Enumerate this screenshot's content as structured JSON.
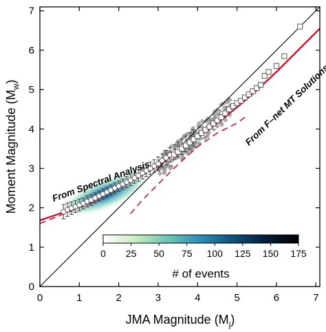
{
  "chart_data": {
    "type": "scatter",
    "xlabel": "JMA Magnitude (M",
    "xlabel_sub": "j",
    "xlabel_end": ")",
    "ylabel": "Moment Magnitude (M",
    "ylabel_sub": "w",
    "ylabel_end": ")",
    "xlim": [
      0,
      7.1
    ],
    "ylim": [
      0,
      7.1
    ],
    "xticks": [
      0,
      1,
      2,
      3,
      4,
      5,
      6,
      7
    ],
    "yticks": [
      0,
      1,
      2,
      3,
      4,
      5,
      6,
      7
    ],
    "grid": false,
    "colorbar": {
      "title": "# of events",
      "ticks": [
        0,
        25,
        50,
        75,
        100,
        125,
        150,
        175
      ],
      "range": [
        0,
        175
      ],
      "colors": [
        "#ffffff",
        "#c8ecc0",
        "#6cc4b4",
        "#2a8db8",
        "#0d4f7c",
        "#051e3c",
        "#000000"
      ]
    },
    "annotations": [
      {
        "text": "From Spectral Analysis"
      },
      {
        "text": "From F–net MT Solutions"
      }
    ],
    "series": [
      {
        "kind": "reference",
        "x": [
          0,
          7.1
        ],
        "y": [
          0,
          7.1
        ]
      },
      {
        "kind": "fit",
        "x": [
          0,
          0.5,
          1.0,
          1.5,
          2.0,
          2.5,
          3.0,
          3.5,
          4.0,
          4.5,
          5.0,
          5.5,
          6.0,
          6.5,
          7.1
        ],
        "y": [
          1.68,
          1.85,
          2.05,
          2.25,
          2.5,
          2.77,
          3.07,
          3.42,
          3.78,
          4.15,
          4.55,
          4.98,
          5.45,
          5.95,
          6.55
        ]
      },
      {
        "kind": "dashed",
        "x": [
          0,
          0.6,
          1.0,
          1.5
        ],
        "y": [
          1.6,
          1.84,
          2.0,
          2.2
        ]
      },
      {
        "kind": "dashed",
        "x": [
          2.3,
          2.6,
          3.0,
          3.5,
          4.0,
          4.5,
          5.0,
          5.2
        ],
        "y": [
          1.85,
          2.2,
          2.6,
          3.1,
          3.55,
          3.9,
          4.15,
          4.3
        ]
      },
      {
        "kind": "binned-spectral",
        "x": [
          0.6,
          0.7,
          0.8,
          0.9,
          1.0,
          1.1,
          1.2,
          1.3,
          1.4,
          1.5,
          1.6,
          1.7,
          1.8,
          1.9,
          2.0,
          2.1,
          2.2,
          2.3,
          2.4,
          2.5,
          2.6,
          2.7,
          2.8,
          2.9,
          3.0,
          3.1,
          3.2,
          3.3,
          3.4,
          3.5,
          3.6,
          3.7,
          3.8,
          3.9
        ],
        "y": [
          1.9,
          1.95,
          1.99,
          2.03,
          2.07,
          2.11,
          2.16,
          2.2,
          2.25,
          2.3,
          2.35,
          2.4,
          2.45,
          2.5,
          2.55,
          2.6,
          2.65,
          2.7,
          2.76,
          2.82,
          2.88,
          2.94,
          3.0,
          3.06,
          3.12,
          3.2,
          3.27,
          3.34,
          3.41,
          3.48,
          3.55,
          3.62,
          3.7,
          3.77
        ],
        "err": [
          0.18,
          0.17,
          0.16,
          0.15,
          0.15,
          0.14,
          0.14,
          0.14,
          0.13,
          0.13,
          0.13,
          0.13,
          0.13,
          0.13,
          0.13,
          0.13,
          0.14,
          0.14,
          0.14,
          0.15,
          0.15,
          0.15,
          0.16,
          0.16,
          0.17,
          0.17,
          0.18,
          0.18,
          0.19,
          0.19,
          0.2,
          0.2,
          0.21,
          0.21
        ]
      },
      {
        "kind": "binned-mt",
        "x": [
          3.4,
          3.5,
          3.6,
          3.7,
          3.8,
          3.9,
          4.0,
          4.1,
          4.2,
          4.3,
          4.4,
          4.5,
          4.6,
          4.7,
          4.8,
          4.9,
          5.0,
          5.1,
          5.2,
          5.3,
          5.4,
          5.5,
          5.6,
          5.7,
          5.8,
          6.0,
          6.2,
          6.6
        ],
        "y": [
          3.35,
          3.42,
          3.5,
          3.58,
          3.66,
          3.74,
          3.82,
          3.9,
          3.98,
          4.06,
          4.14,
          4.22,
          4.3,
          4.4,
          4.5,
          4.58,
          4.66,
          4.72,
          4.8,
          4.88,
          4.96,
          5.04,
          5.12,
          5.35,
          5.45,
          5.6,
          5.85,
          6.6
        ],
        "err": [
          0.06,
          0.06,
          0.06,
          0.06,
          0.06,
          0.06,
          0.06,
          0.06,
          0.06,
          0.06,
          0.06,
          0.06,
          0.06,
          0.06,
          0.06,
          0.06,
          0.06,
          0.06,
          0.06,
          0.06,
          0.06,
          0.06,
          0.06,
          0.06,
          0.06,
          0.06,
          0.06,
          0.06
        ]
      }
    ]
  },
  "colors": {
    "fit": "#c8102e",
    "reference": "#000000",
    "marker_edge": "#555555",
    "scatter_fill": "#b0b0b0"
  }
}
